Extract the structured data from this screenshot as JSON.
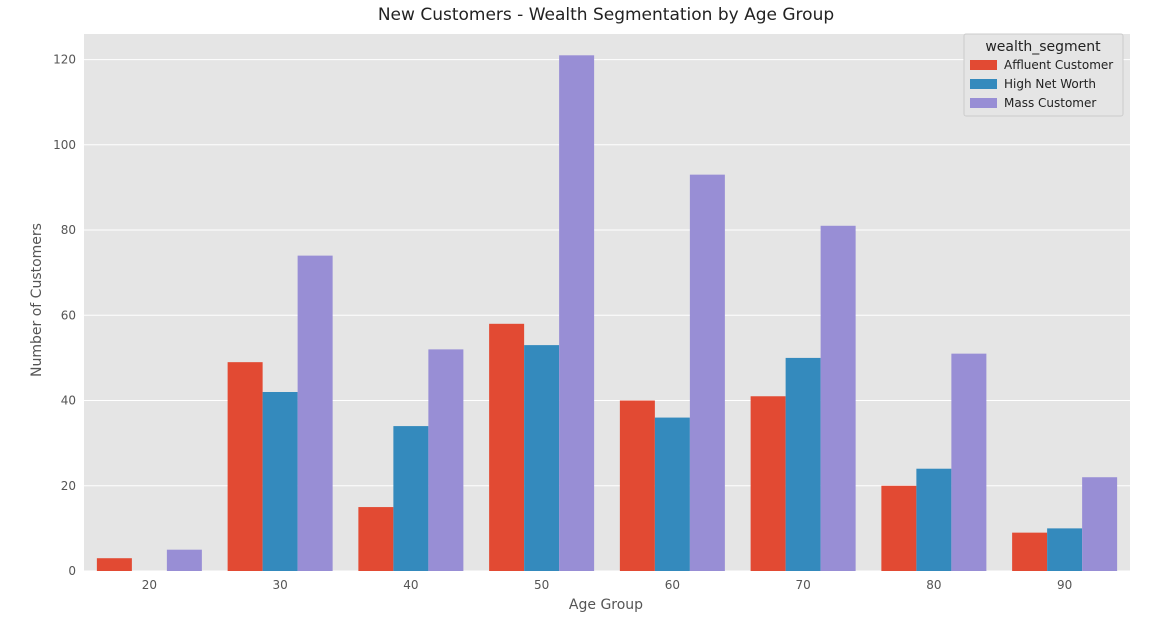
{
  "chart_data": {
    "type": "bar",
    "title": "New Customers - Wealth Segmentation by Age Group",
    "xlabel": "Age Group",
    "ylabel": "Number of Customers",
    "categories": [
      "20",
      "30",
      "40",
      "50",
      "60",
      "70",
      "80",
      "90"
    ],
    "series": [
      {
        "name": "Affluent Customer",
        "color": "#E24A33",
        "values": [
          3,
          49,
          15,
          58,
          40,
          41,
          20,
          9
        ]
      },
      {
        "name": "High Net Worth",
        "color": "#348ABD",
        "values": [
          0,
          42,
          34,
          53,
          36,
          50,
          24,
          10
        ]
      },
      {
        "name": "Mass Customer",
        "color": "#988ED5",
        "values": [
          5,
          74,
          52,
          121,
          93,
          81,
          51,
          22
        ]
      }
    ],
    "yticks": [
      0,
      20,
      40,
      60,
      80,
      100,
      120
    ],
    "ylim": [
      0,
      126
    ],
    "grid": true,
    "legend": {
      "title": "wealth_segment",
      "position": "top-right"
    },
    "style": {
      "background": "#E5E5E5",
      "grid_color": "#FFFFFF"
    }
  }
}
